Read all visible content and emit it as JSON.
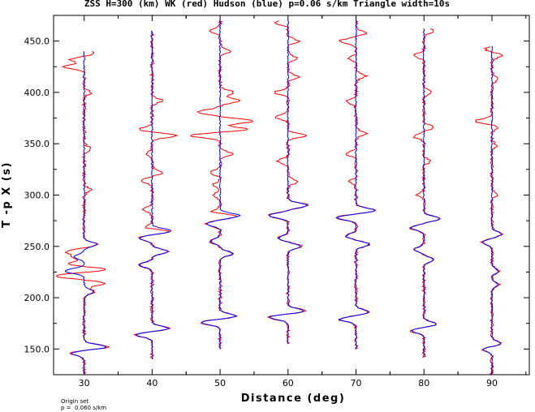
{
  "chart_data": {
    "type": "line",
    "title": "ZSS H=300 (km) WK (red) Hudson (blue) p=0.06 s/km Triangle width=10s",
    "xlabel": "Distance (deg)",
    "ylabel": "T -p X (s)",
    "xlim": [
      25.5,
      95.5
    ],
    "ylim": [
      125,
      475
    ],
    "xticks": [
      30,
      40,
      50,
      60,
      70,
      80,
      90
    ],
    "xtick_labels": [
      "30",
      "40",
      "50",
      "60",
      "70",
      "80",
      "90"
    ],
    "yticks": [
      150,
      200,
      250,
      300,
      350,
      400,
      450
    ],
    "ytick_labels": [
      "150.0",
      "200.0",
      "250.0",
      "300.0",
      "350.0",
      "400.0",
      "450.0"
    ],
    "grid": false,
    "series": [
      {
        "name": "WK",
        "color": "#ff0000"
      },
      {
        "name": "Hudson",
        "color": "#0000ff"
      }
    ],
    "traces": [
      {
        "distance": 30,
        "t_start": 125,
        "t_end": 440,
        "arrivals": [
          [
            146,
            -2.0
          ],
          [
            152,
            3.5
          ],
          [
            206,
            1.5
          ],
          [
            226,
            -3.0
          ],
          [
            240,
            -1.5
          ],
          [
            252,
            2.0
          ]
        ],
        "red_extra": [
          [
            227,
            6.0
          ],
          [
            221,
            -4.0
          ],
          [
            214,
            3.0
          ],
          [
            233,
            -2.5
          ],
          [
            245,
            -2.5
          ],
          [
            305,
            1.0
          ],
          [
            345,
            1.0
          ],
          [
            400,
            1.0
          ],
          [
            425,
            -3.0
          ],
          [
            432,
            -2.0
          ],
          [
            438,
            1.5
          ]
        ]
      },
      {
        "distance": 40,
        "t_start": 140,
        "t_end": 460,
        "arrivals": [
          [
            164,
            -2.5
          ],
          [
            170,
            2.5
          ],
          [
            232,
            -2.0
          ],
          [
            245,
            2.5
          ],
          [
            258,
            -2.0
          ],
          [
            265,
            3.0
          ]
        ],
        "red_extra": [
          [
            268,
            -2.0
          ],
          [
            286,
            -1.5
          ],
          [
            314,
            -1.5
          ],
          [
            322,
            1.5
          ],
          [
            340,
            -1.0
          ],
          [
            358,
            3.5
          ],
          [
            364,
            -2.0
          ],
          [
            392,
            1.5
          ]
        ]
      },
      {
        "distance": 50,
        "t_start": 150,
        "t_end": 470,
        "arrivals": [
          [
            176,
            -3.0
          ],
          [
            182,
            2.5
          ],
          [
            243,
            2.0
          ],
          [
            255,
            -1.5
          ],
          [
            272,
            -2.0
          ],
          [
            280,
            3.0
          ]
        ],
        "red_extra": [
          [
            283,
            -2.0
          ],
          [
            300,
            -1.0
          ],
          [
            310,
            -1.0
          ],
          [
            322,
            -1.5
          ],
          [
            340,
            2.0
          ],
          [
            358,
            -4.5
          ],
          [
            364,
            4.0
          ],
          [
            372,
            5.0
          ],
          [
            381,
            -3.5
          ],
          [
            392,
            3.0
          ],
          [
            400,
            2.0
          ],
          [
            440,
            1.5
          ],
          [
            460,
            -1.5
          ]
        ]
      },
      {
        "distance": 60,
        "t_start": 155,
        "t_end": 470,
        "arrivals": [
          [
            181,
            -3.0
          ],
          [
            187,
            2.5
          ],
          [
            250,
            2.0
          ],
          [
            258,
            -1.5
          ],
          [
            280,
            -3.0
          ],
          [
            290,
            3.0
          ]
        ],
        "red_extra": [
          [
            313,
            1.5
          ],
          [
            333,
            -1.5
          ],
          [
            358,
            2.5
          ],
          [
            376,
            -2.0
          ],
          [
            400,
            -2.0
          ],
          [
            415,
            1.5
          ],
          [
            433,
            1.5
          ],
          [
            450,
            1.5
          ],
          [
            468,
            -2.0
          ]
        ]
      },
      {
        "distance": 70,
        "t_start": 150,
        "t_end": 470,
        "arrivals": [
          [
            179,
            -2.5
          ],
          [
            186,
            2.0
          ],
          [
            252,
            2.0
          ],
          [
            260,
            -1.5
          ],
          [
            278,
            -3.0
          ],
          [
            285,
            3.0
          ]
        ],
        "red_extra": [
          [
            313,
            -1.0
          ],
          [
            340,
            -1.5
          ],
          [
            360,
            1.5
          ],
          [
            391,
            -1.5
          ],
          [
            416,
            1.5
          ],
          [
            433,
            -1.0
          ],
          [
            450,
            -2.5
          ],
          [
            458,
            1.5
          ]
        ]
      },
      {
        "distance": 80,
        "t_start": 142,
        "t_end": 462,
        "arrivals": [
          [
            168,
            -2.0
          ],
          [
            174,
            2.0
          ],
          [
            237,
            1.5
          ],
          [
            247,
            -1.5
          ],
          [
            268,
            -2.0
          ],
          [
            277,
            2.5
          ]
        ],
        "red_extra": [
          [
            300,
            -1.0
          ],
          [
            333,
            1.0
          ],
          [
            357,
            -1.5
          ],
          [
            366,
            1.5
          ],
          [
            400,
            1.0
          ],
          [
            436,
            -1.5
          ],
          [
            460,
            1.5
          ]
        ]
      },
      {
        "distance": 90,
        "t_start": 125,
        "t_end": 445,
        "arrivals": [
          [
            150,
            -1.5
          ],
          [
            155,
            1.5
          ],
          [
            213,
            1.0
          ],
          [
            226,
            1.0
          ],
          [
            254,
            -1.5
          ],
          [
            262,
            1.5
          ]
        ],
        "red_extra": [
          [
            300,
            0.8
          ],
          [
            348,
            0.8
          ],
          [
            366,
            1.0
          ],
          [
            372,
            -2.5
          ],
          [
            413,
            1.0
          ],
          [
            436,
            1.5
          ],
          [
            442,
            -1.0
          ]
        ]
      }
    ]
  },
  "notes": {
    "origin": "Origin set",
    "slowness": "p =  0.060 s/km"
  }
}
